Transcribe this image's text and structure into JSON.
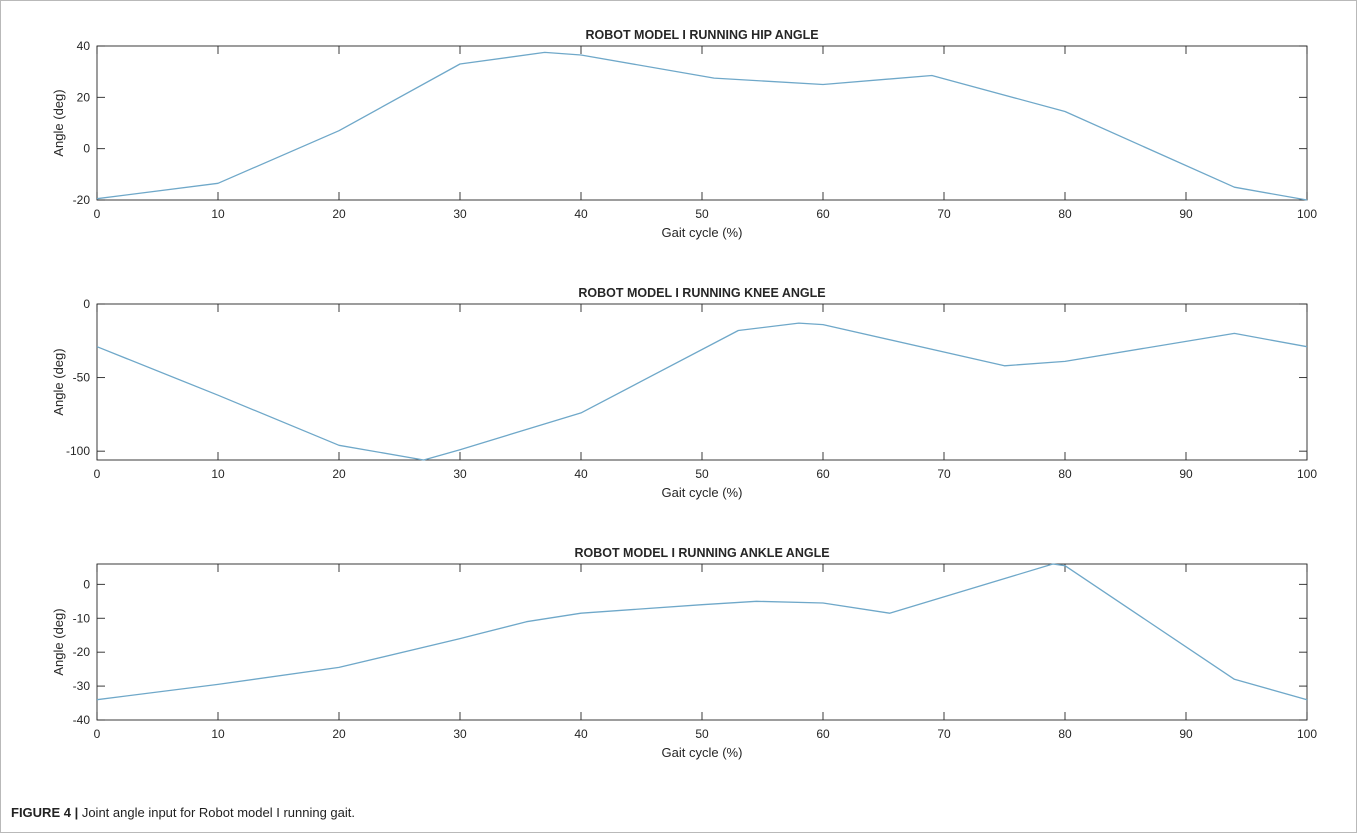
{
  "figure_caption": {
    "label": "FIGURE 4 |",
    "text": "Joint angle input for Robot model I running gait."
  },
  "colors": {
    "line": "#6fa8c9",
    "axes": "#262626",
    "text": "#262626"
  },
  "chart_data": [
    {
      "type": "line",
      "title": "ROBOT MODEL I RUNNING HIP ANGLE",
      "xlabel": "Gait cycle (%)",
      "ylabel": "Angle (deg)",
      "xlim": [
        0,
        100
      ],
      "ylim": [
        -20,
        40
      ],
      "xticks": [
        0,
        10,
        20,
        30,
        40,
        50,
        60,
        70,
        80,
        90,
        100
      ],
      "yticks": [
        -20,
        0,
        20,
        40
      ],
      "grid": false,
      "series": [
        {
          "x": [
            0,
            10,
            20,
            30,
            37,
            40,
            51,
            60,
            69,
            80,
            94,
            100
          ],
          "y": [
            -19.5,
            -13.5,
            7,
            33,
            37.5,
            36.5,
            27.5,
            25,
            28.5,
            14.5,
            -15,
            -20
          ]
        }
      ]
    },
    {
      "type": "line",
      "title": "ROBOT MODEL I RUNNING KNEE ANGLE",
      "xlabel": "Gait cycle (%)",
      "ylabel": "Angle (deg)",
      "xlim": [
        0,
        100
      ],
      "ylim": [
        -106,
        0
      ],
      "xticks": [
        0,
        10,
        20,
        30,
        40,
        50,
        60,
        70,
        80,
        90,
        100
      ],
      "yticks": [
        -100,
        -50,
        0
      ],
      "grid": false,
      "series": [
        {
          "x": [
            0,
            10,
            20,
            27,
            30,
            40,
            53,
            58,
            60,
            75,
            80,
            94,
            100
          ],
          "y": [
            -29,
            -62,
            -96,
            -106,
            -99,
            -74,
            -18,
            -13,
            -14,
            -42,
            -39,
            -20,
            -29
          ]
        }
      ]
    },
    {
      "type": "line",
      "title": "ROBOT MODEL I RUNNING ANKLE ANGLE",
      "xlabel": "Gait cycle (%)",
      "ylabel": "Angle (deg)",
      "xlim": [
        0,
        100
      ],
      "ylim": [
        -40,
        6
      ],
      "xticks": [
        0,
        10,
        20,
        30,
        40,
        50,
        60,
        70,
        80,
        90,
        100
      ],
      "yticks": [
        -40,
        -30,
        -20,
        -10,
        0
      ],
      "grid": false,
      "series": [
        {
          "x": [
            0,
            10,
            20,
            30,
            35.5,
            40,
            50,
            54.5,
            60,
            65.5,
            79,
            80,
            94,
            100
          ],
          "y": [
            -34,
            -29.5,
            -24.5,
            -16,
            -11,
            -8.5,
            -6,
            -5,
            -5.5,
            -8.5,
            6,
            5.5,
            -28,
            -34
          ]
        }
      ]
    }
  ]
}
